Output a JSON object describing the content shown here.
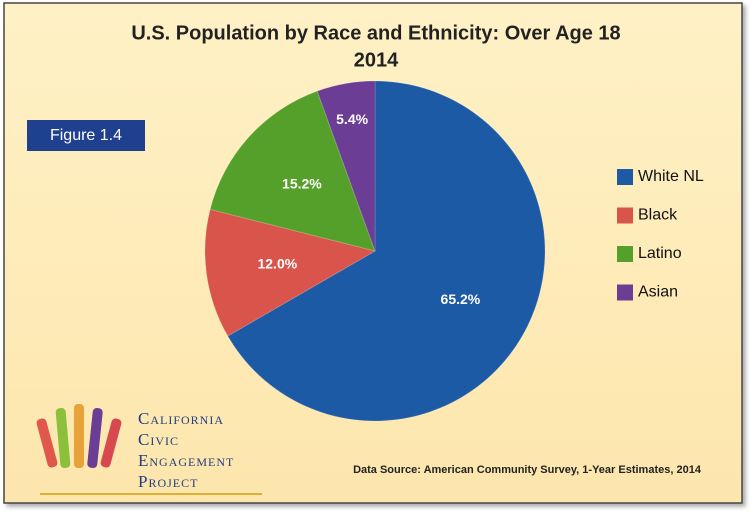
{
  "chart_data": {
    "type": "pie",
    "title": "U.S. Population by Race and Ethnicity: Over Age 18",
    "subtitle": "2014",
    "figure_label": "Figure 1.4",
    "categories": [
      "White NL",
      "Black",
      "Latino",
      "Asian"
    ],
    "values": [
      65.2,
      12.0,
      15.2,
      5.4
    ],
    "value_labels": [
      "65.2%",
      "12.0%",
      "15.2%",
      "5.4%"
    ],
    "colors": [
      "#1d5aa6",
      "#d9544a",
      "#55a02a",
      "#6b3d94"
    ],
    "legend": "right",
    "source": "Data Source: American Community Survey, 1-Year Estimates, 2014",
    "logo": [
      "California",
      "Civic",
      "Engagement",
      "Project"
    ]
  }
}
